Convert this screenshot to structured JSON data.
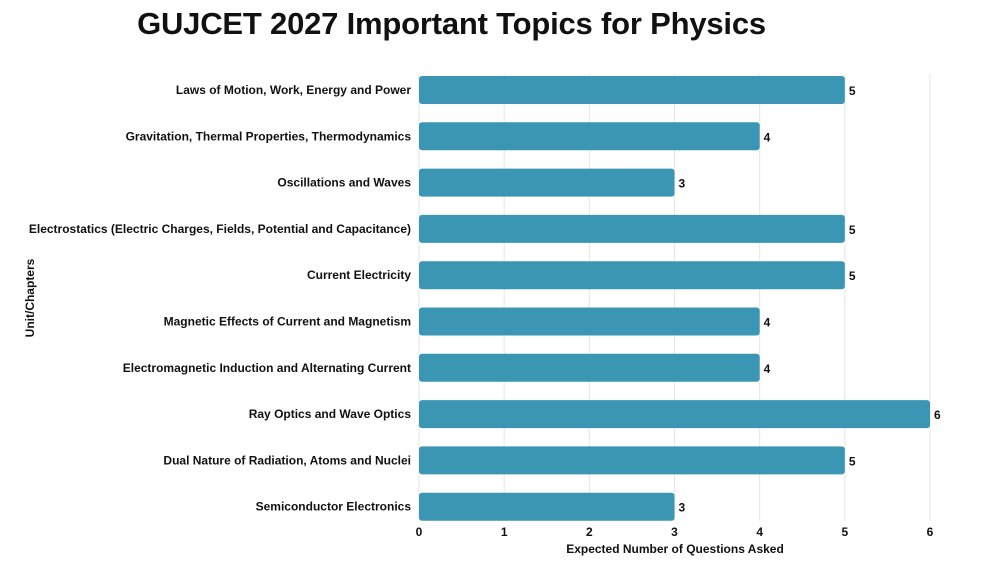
{
  "chart_data": {
    "type": "bar",
    "orientation": "horizontal",
    "title": "GUJCET 2027 Important Topics for Physics",
    "xlabel": "Expected Number of Questions Asked",
    "ylabel": "Unit/Chapters",
    "categories": [
      "Laws of Motion, Work, Energy and Power",
      "Gravitation, Thermal Properties, Thermodynamics",
      "Oscillations and Waves",
      "Electrostatics (Electric Charges, Fields, Potential and Capacitance)",
      "Current Electricity",
      "Magnetic Effects of Current and Magnetism",
      "Electromagnetic Induction and Alternating Current",
      "Ray Optics and Wave Optics",
      "Dual Nature of Radiation, Atoms and Nuclei",
      "Semiconductor Electronics"
    ],
    "values": [
      5,
      4,
      3,
      5,
      5,
      4,
      4,
      6,
      5,
      3
    ],
    "xlim": [
      0,
      6
    ],
    "xticks": [
      "0",
      "1",
      "2",
      "3",
      "4",
      "5",
      "6"
    ],
    "grid": true,
    "data_labels": true,
    "bar_color": "#3a96b3"
  }
}
